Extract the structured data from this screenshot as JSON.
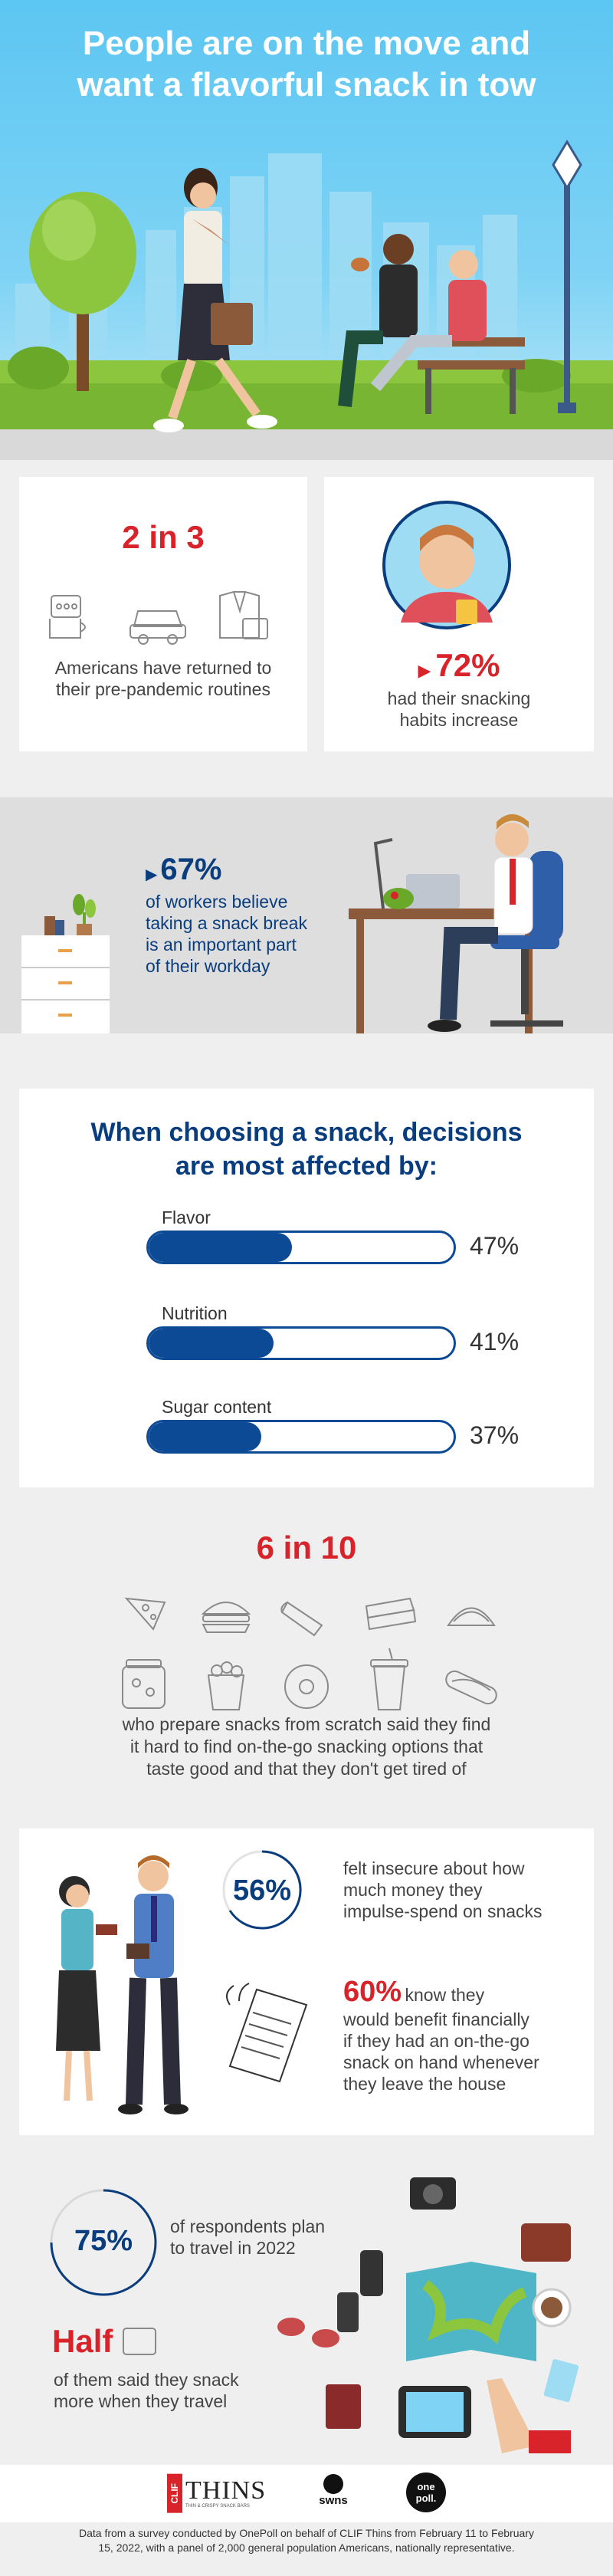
{
  "hero": {
    "title_line1": "People are on the move and",
    "title_line2": "want a flavorful snack in tow"
  },
  "routines": {
    "stat": "2 in 3",
    "text_line1": "Americans have returned to",
    "text_line2": "their pre-pandemic routines"
  },
  "snacking": {
    "stat": "72%",
    "text_line1": "had their snacking",
    "text_line2": "habits increase"
  },
  "workers": {
    "stat": "67%",
    "text_line1": "of workers believe",
    "text_line2": "taking a snack break",
    "text_line3": "is an important part",
    "text_line4": "of their workday"
  },
  "decisions": {
    "title_line1": "When choosing a snack, decisions",
    "title_line2": "are most affected by:",
    "bars": [
      {
        "label": "Flavor",
        "pct": "47%",
        "value": 47
      },
      {
        "label": "Nutrition",
        "pct": "41%",
        "value": 41
      },
      {
        "label": "Sugar content",
        "pct": "37%",
        "value": 37
      }
    ]
  },
  "scratch": {
    "stat": "6 in 10",
    "text_line1": "who prepare snacks from scratch said they find",
    "text_line2": "it hard to find on-the-go snacking options that",
    "text_line3": "taste good and that they don't get tired of",
    "icons": [
      "pizza-icon",
      "burger-icon",
      "burrito-icon",
      "sandwich-icon",
      "taco-icon",
      "jar-icon",
      "popcorn-icon",
      "donut-icon",
      "cup-icon",
      "hotdog-icon"
    ]
  },
  "money": {
    "stat1": "56%",
    "text1_line1": "felt insecure about how",
    "text1_line2": "much money they",
    "text1_line3": "impulse-spend on snacks",
    "stat2": "60%",
    "text2_line1_suffix": "know they",
    "text2_line2": "would benefit financially",
    "text2_line3": "if they had an on-the-go",
    "text2_line4": "snack on hand whenever",
    "text2_line5": "they leave the house"
  },
  "travel": {
    "stat1": "75%",
    "text1_line1": "of respondents plan",
    "text1_line2": "to travel in 2022",
    "stat2": "Half",
    "text2_line1": "of them said they snack",
    "text2_line2": "more when they travel"
  },
  "logos": {
    "clif": "CLIF",
    "thins": "THINS",
    "thins_sub": "THIN & CRISPY SNACK BARS",
    "swns": "swns",
    "onepoll_line1": "one",
    "onepoll_line2": "poll."
  },
  "footer": {
    "line1": "Data from a survey conducted by OnePoll on behalf of CLIF Thins from February 11 to February",
    "line2": "15, 2022, with a panel of 2,000 general population Americans, nationally representative."
  },
  "colors": {
    "red": "#d8232a",
    "navy": "#0a3d7e",
    "bar_blue": "#0d4a96",
    "sky": "#5cc6f2"
  }
}
